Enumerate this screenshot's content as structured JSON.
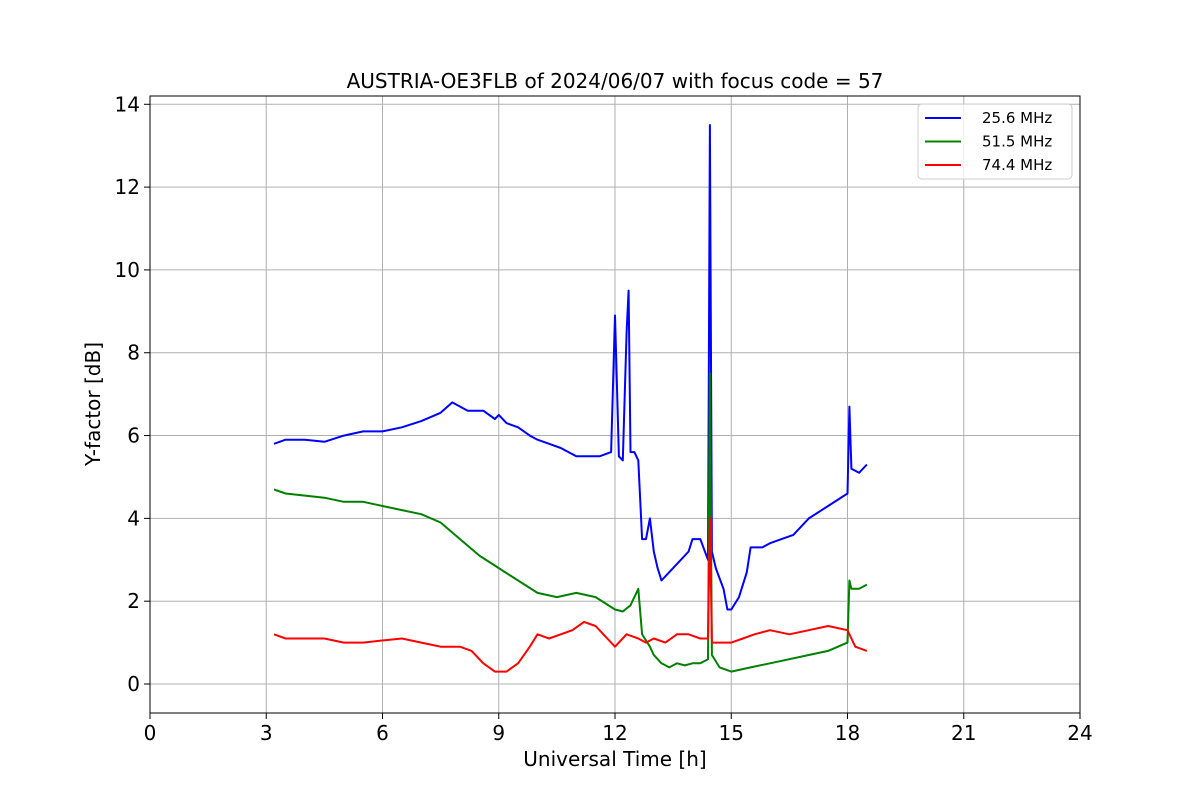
{
  "chart_data": {
    "type": "line",
    "title": "AUSTRIA-OE3FLB of 2024/06/07 with focus code = 57",
    "xlabel": "Universal Time [h]",
    "ylabel": "Y-factor [dB]",
    "xlim": [
      0,
      24
    ],
    "ylim": [
      -0.7,
      14.2
    ],
    "xticks": [
      0,
      3,
      6,
      9,
      12,
      15,
      18,
      21,
      24
    ],
    "yticks": [
      0,
      2,
      4,
      6,
      8,
      10,
      12,
      14
    ],
    "grid": true,
    "legend_position": "top-right",
    "series": [
      {
        "name": "25.6 MHz",
        "color": "#0000ff",
        "x": [
          3.2,
          3.5,
          4.0,
          4.5,
          5.0,
          5.5,
          6.0,
          6.5,
          7.0,
          7.5,
          7.8,
          8.2,
          8.6,
          8.9,
          9.0,
          9.2,
          9.5,
          9.8,
          10.0,
          10.3,
          10.6,
          10.8,
          11.0,
          11.3,
          11.6,
          11.9,
          12.0,
          12.1,
          12.2,
          12.3,
          12.35,
          12.4,
          12.5,
          12.6,
          12.7,
          12.8,
          12.9,
          13.0,
          13.1,
          13.2,
          13.3,
          13.5,
          13.7,
          13.9,
          14.0,
          14.2,
          14.4,
          14.45,
          14.5,
          14.6,
          14.8,
          14.9,
          15.0,
          15.2,
          15.4,
          15.5,
          15.6,
          15.8,
          16.0,
          16.3,
          16.6,
          17.0,
          17.5,
          18.0,
          18.05,
          18.1,
          18.3,
          18.5
        ],
        "y": [
          5.8,
          5.9,
          5.9,
          5.85,
          6.0,
          6.1,
          6.1,
          6.2,
          6.35,
          6.55,
          6.8,
          6.6,
          6.6,
          6.4,
          6.5,
          6.3,
          6.2,
          6.0,
          5.9,
          5.8,
          5.7,
          5.6,
          5.5,
          5.5,
          5.5,
          5.6,
          8.9,
          5.5,
          5.4,
          8.5,
          9.5,
          5.6,
          5.6,
          5.4,
          3.5,
          3.5,
          4.0,
          3.2,
          2.8,
          2.5,
          2.6,
          2.8,
          3.0,
          3.2,
          3.5,
          3.5,
          3.0,
          13.5,
          3.2,
          2.8,
          2.3,
          1.8,
          1.8,
          2.1,
          2.7,
          3.3,
          3.3,
          3.3,
          3.4,
          3.5,
          3.6,
          4.0,
          4.3,
          4.6,
          6.7,
          5.2,
          5.1,
          5.3
        ]
      },
      {
        "name": "51.5 MHz",
        "color": "#008000",
        "x": [
          3.2,
          3.5,
          4.0,
          4.5,
          5.0,
          5.5,
          6.0,
          6.5,
          7.0,
          7.5,
          8.0,
          8.5,
          9.0,
          9.5,
          10.0,
          10.5,
          11.0,
          11.5,
          12.0,
          12.2,
          12.4,
          12.6,
          12.7,
          12.9,
          13.0,
          13.2,
          13.4,
          13.6,
          13.8,
          14.0,
          14.2,
          14.4,
          14.45,
          14.5,
          14.7,
          15.0,
          15.5,
          16.0,
          16.5,
          17.0,
          17.5,
          18.0,
          18.05,
          18.1,
          18.3,
          18.5
        ],
        "y": [
          4.7,
          4.6,
          4.55,
          4.5,
          4.4,
          4.4,
          4.3,
          4.2,
          4.1,
          3.9,
          3.5,
          3.1,
          2.8,
          2.5,
          2.2,
          2.1,
          2.2,
          2.1,
          1.8,
          1.75,
          1.9,
          2.3,
          1.2,
          0.9,
          0.7,
          0.5,
          0.4,
          0.5,
          0.45,
          0.5,
          0.5,
          0.6,
          7.5,
          0.7,
          0.4,
          0.3,
          0.4,
          0.5,
          0.6,
          0.7,
          0.8,
          1.0,
          2.5,
          2.3,
          2.3,
          2.4
        ]
      },
      {
        "name": "74.4 MHz",
        "color": "#ff0000",
        "x": [
          3.2,
          3.5,
          4.0,
          4.5,
          5.0,
          5.5,
          6.0,
          6.5,
          7.0,
          7.5,
          8.0,
          8.3,
          8.6,
          8.9,
          9.2,
          9.5,
          9.8,
          10.0,
          10.3,
          10.6,
          10.9,
          11.2,
          11.5,
          11.8,
          12.0,
          12.3,
          12.6,
          12.8,
          13.0,
          13.3,
          13.6,
          13.9,
          14.2,
          14.4,
          14.45,
          14.5,
          14.8,
          15.0,
          15.3,
          15.6,
          16.0,
          16.5,
          17.0,
          17.5,
          18.0,
          18.2,
          18.5
        ],
        "y": [
          1.2,
          1.1,
          1.1,
          1.1,
          1.0,
          1.0,
          1.05,
          1.1,
          1.0,
          0.9,
          0.9,
          0.8,
          0.5,
          0.3,
          0.3,
          0.5,
          0.9,
          1.2,
          1.1,
          1.2,
          1.3,
          1.5,
          1.4,
          1.1,
          0.9,
          1.2,
          1.1,
          1.0,
          1.1,
          1.0,
          1.2,
          1.2,
          1.1,
          1.1,
          4.0,
          1.0,
          1.0,
          1.0,
          1.1,
          1.2,
          1.3,
          1.2,
          1.3,
          1.4,
          1.3,
          0.9,
          0.8
        ]
      }
    ]
  }
}
